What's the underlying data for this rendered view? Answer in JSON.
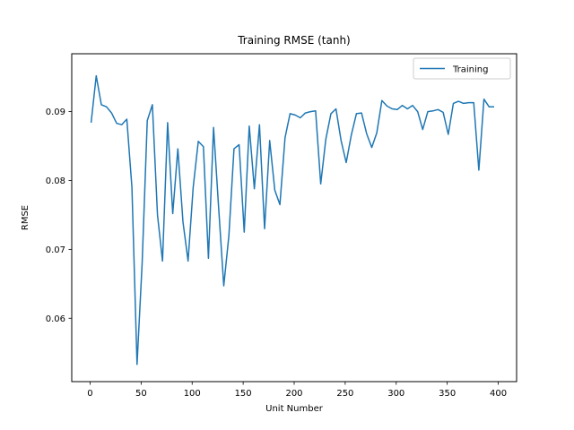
{
  "chart_data": {
    "type": "line",
    "title": "Training RMSE (tanh)",
    "xlabel": "Unit Number",
    "ylabel": "RMSE",
    "xlim": [
      -18,
      418
    ],
    "ylim": [
      0.0508,
      0.0984
    ],
    "xticks": [
      0,
      50,
      100,
      150,
      200,
      250,
      300,
      350,
      400
    ],
    "yticks": [
      0.06,
      0.07,
      0.08,
      0.09
    ],
    "ytick_labels": [
      "0.06",
      "0.07",
      "0.08",
      "0.09"
    ],
    "grid": false,
    "legend_position": "top-right",
    "series": [
      {
        "name": "Training",
        "color": "#1f77b4",
        "x": [
          1,
          6,
          11,
          16,
          21,
          26,
          31,
          36,
          41,
          46,
          51,
          56,
          61,
          66,
          71,
          76,
          81,
          86,
          91,
          96,
          101,
          106,
          111,
          116,
          121,
          126,
          131,
          136,
          141,
          146,
          151,
          156,
          161,
          166,
          171,
          176,
          181,
          186,
          191,
          196,
          201,
          206,
          211,
          216,
          221,
          226,
          231,
          236,
          241,
          246,
          251,
          256,
          261,
          266,
          271,
          276,
          281,
          286,
          291,
          296,
          301,
          306,
          311,
          316,
          321,
          326,
          331,
          336,
          341,
          346,
          351,
          356,
          361,
          366,
          371,
          376,
          381,
          386,
          391,
          396
        ],
        "y": [
          0.0884,
          0.0952,
          0.091,
          0.0907,
          0.0898,
          0.0883,
          0.0881,
          0.0889,
          0.079,
          0.0533,
          0.068,
          0.0887,
          0.091,
          0.075,
          0.0683,
          0.0884,
          0.0752,
          0.0846,
          0.074,
          0.0683,
          0.079,
          0.0857,
          0.0849,
          0.0687,
          0.0877,
          0.076,
          0.0647,
          0.072,
          0.0846,
          0.0852,
          0.0725,
          0.0879,
          0.0788,
          0.0881,
          0.073,
          0.0858,
          0.0786,
          0.0765,
          0.0862,
          0.0897,
          0.0895,
          0.0891,
          0.0898,
          0.09,
          0.0901,
          0.0795,
          0.086,
          0.0897,
          0.0904,
          0.0858,
          0.0826,
          0.0866,
          0.0897,
          0.0898,
          0.0868,
          0.0848,
          0.0869,
          0.0916,
          0.0908,
          0.0904,
          0.0903,
          0.0909,
          0.0904,
          0.0909,
          0.09,
          0.0874,
          0.09,
          0.0901,
          0.0903,
          0.0899,
          0.0867,
          0.0912,
          0.0915,
          0.0912,
          0.0913,
          0.0913,
          0.0815,
          0.0918,
          0.0907,
          0.0907
        ]
      }
    ]
  }
}
